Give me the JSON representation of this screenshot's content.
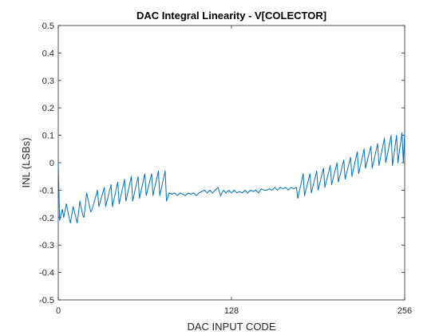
{
  "chart_data": {
    "type": "line",
    "title": "DAC Integral Linearity - V[COLECTOR]",
    "xlabel": "DAC INPUT CODE",
    "ylabel": "INL (LSBs)",
    "xlim": [
      0,
      256
    ],
    "ylim": [
      -0.5,
      0.5
    ],
    "xticks": [
      0,
      128,
      256
    ],
    "yticks": [
      -0.5,
      -0.4,
      -0.3,
      -0.2,
      -0.1,
      0,
      0.1,
      0.2,
      0.3,
      0.4,
      0.5
    ],
    "xtick_labels": [
      "0",
      "128",
      "256"
    ],
    "ytick_labels": [
      "-0.5",
      "-0.4",
      "-0.3",
      "-0.2",
      "-0.1",
      "0",
      "0.1",
      "0.2",
      "0.3",
      "0.4",
      "0.5"
    ],
    "grid": false,
    "line_color": "#0072BD",
    "series": [
      {
        "x": [
          0,
          1,
          3,
          4,
          6,
          8,
          9,
          11,
          13,
          14,
          16,
          18,
          19,
          21,
          24,
          25,
          29,
          30,
          34,
          35,
          39,
          40,
          44,
          45,
          49,
          50,
          54,
          55,
          59,
          60,
          64,
          65,
          69,
          70,
          74,
          75,
          79,
          80,
          82,
          84,
          86,
          88,
          90,
          92,
          94,
          96,
          98,
          100,
          102,
          104,
          106,
          108,
          110,
          112,
          114,
          116,
          118,
          120,
          122,
          124,
          126,
          128,
          130,
          132,
          134,
          136,
          138,
          140,
          142,
          144,
          146,
          148,
          150,
          152,
          154,
          156,
          158,
          160,
          162,
          164,
          166,
          168,
          170,
          172,
          174,
          176,
          177,
          181,
          182,
          186,
          187,
          191,
          192,
          196,
          197,
          201,
          202,
          206,
          207,
          211,
          212,
          216,
          217,
          221,
          222,
          226,
          227,
          231,
          232,
          236,
          237,
          241,
          242,
          246,
          247,
          250,
          251,
          254,
          255,
          256
        ],
        "y": [
          0.0,
          -0.21,
          -0.17,
          -0.2,
          -0.15,
          -0.2,
          -0.22,
          -0.16,
          -0.2,
          -0.22,
          -0.14,
          -0.19,
          -0.2,
          -0.11,
          -0.18,
          -0.17,
          -0.1,
          -0.16,
          -0.09,
          -0.16,
          -0.08,
          -0.16,
          -0.07,
          -0.15,
          -0.06,
          -0.14,
          -0.05,
          -0.14,
          -0.05,
          -0.13,
          -0.04,
          -0.12,
          -0.04,
          -0.12,
          -0.03,
          -0.12,
          -0.03,
          -0.14,
          -0.11,
          -0.115,
          -0.11,
          -0.12,
          -0.11,
          -0.115,
          -0.12,
          -0.11,
          -0.115,
          -0.11,
          -0.12,
          -0.11,
          -0.105,
          -0.1,
          -0.11,
          -0.1,
          -0.11,
          -0.1,
          -0.09,
          -0.12,
          -0.1,
          -0.11,
          -0.1,
          -0.11,
          -0.1,
          -0.11,
          -0.105,
          -0.11,
          -0.1,
          -0.11,
          -0.1,
          -0.105,
          -0.1,
          -0.11,
          -0.095,
          -0.1,
          -0.1,
          -0.095,
          -0.1,
          -0.09,
          -0.1,
          -0.09,
          -0.095,
          -0.09,
          -0.1,
          -0.09,
          -0.095,
          -0.09,
          -0.13,
          -0.04,
          -0.12,
          -0.04,
          -0.11,
          -0.03,
          -0.1,
          -0.02,
          -0.09,
          -0.01,
          -0.08,
          0.0,
          -0.07,
          0.01,
          -0.06,
          0.02,
          -0.05,
          0.04,
          -0.04,
          0.05,
          -0.02,
          0.06,
          -0.02,
          0.07,
          -0.01,
          0.09,
          0.0,
          0.1,
          -0.01,
          0.1,
          0.0,
          0.11,
          0.0,
          0.11
        ]
      }
    ]
  }
}
